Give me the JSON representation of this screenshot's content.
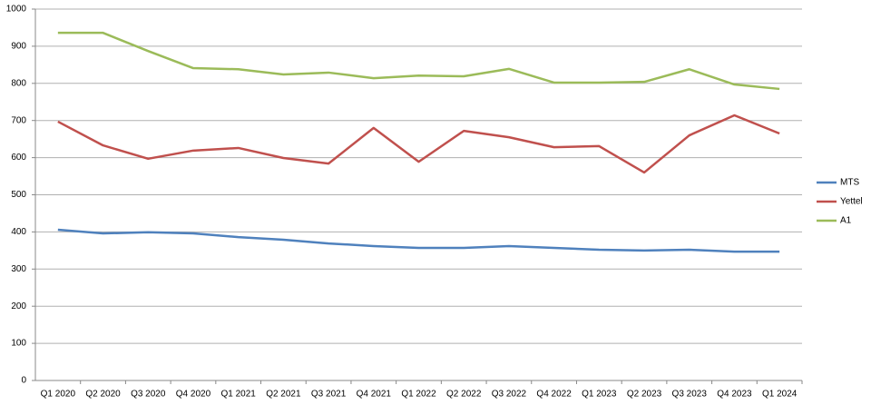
{
  "chart_data": {
    "type": "line",
    "categories": [
      "Q1 2020",
      "Q2 2020",
      "Q3 2020",
      "Q4 2020",
      "Q1 2021",
      "Q2 2021",
      "Q3 2021",
      "Q4 2021",
      "Q1 2022",
      "Q2 2022",
      "Q3 2022",
      "Q4 2022",
      "Q1 2023",
      "Q2 2023",
      "Q3 2023",
      "Q4 2023",
      "Q1 2024"
    ],
    "series": [
      {
        "name": "MTS",
        "color": "#4f81bd",
        "values": [
          406,
          396,
          399,
          396,
          386,
          379,
          369,
          362,
          357,
          357,
          362,
          357,
          352,
          350,
          352,
          347,
          347
        ]
      },
      {
        "name": "Yettel",
        "color": "#c0504d",
        "values": [
          697,
          633,
          597,
          619,
          626,
          599,
          584,
          680,
          589,
          672,
          655,
          628,
          631,
          560,
          660,
          714,
          665
        ]
      },
      {
        "name": "A1",
        "color": "#9bbb59",
        "values": [
          936,
          936,
          887,
          841,
          838,
          824,
          829,
          814,
          821,
          819,
          839,
          802,
          802,
          804,
          838,
          797,
          785
        ]
      }
    ],
    "ylim": [
      0,
      1000
    ],
    "yticks": [
      0,
      100,
      200,
      300,
      400,
      500,
      600,
      700,
      800,
      900,
      1000
    ],
    "grid": true,
    "legend": "right"
  }
}
